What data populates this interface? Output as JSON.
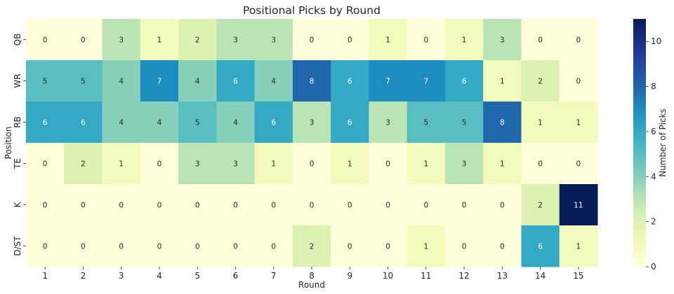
{
  "chart_data": {
    "type": "heatmap",
    "title": "Positional Picks by Round",
    "xlabel": "Round",
    "ylabel": "Position",
    "colorbar_label": "Number of Picks",
    "colorbar_ticks": [
      0,
      2,
      4,
      6,
      8,
      10
    ],
    "vmin": 0,
    "vmax": 11,
    "colormap": "YlGnBu",
    "x": [
      "1",
      "2",
      "3",
      "4",
      "5",
      "6",
      "7",
      "8",
      "9",
      "10",
      "11",
      "12",
      "13",
      "14",
      "15"
    ],
    "y": [
      "QB",
      "WR",
      "RB",
      "TE",
      "K",
      "D/ST"
    ],
    "values": [
      [
        0,
        0,
        3,
        1,
        2,
        3,
        3,
        0,
        0,
        1,
        0,
        1,
        3,
        0,
        0
      ],
      [
        5,
        5,
        4,
        7,
        4,
        6,
        4,
        8,
        6,
        7,
        7,
        6,
        1,
        2,
        0
      ],
      [
        6,
        6,
        4,
        4,
        5,
        4,
        6,
        3,
        6,
        3,
        5,
        5,
        8,
        1,
        1
      ],
      [
        0,
        2,
        1,
        0,
        3,
        3,
        1,
        0,
        1,
        0,
        1,
        3,
        1,
        0,
        0
      ],
      [
        0,
        0,
        0,
        0,
        0,
        0,
        0,
        0,
        0,
        0,
        0,
        0,
        0,
        2,
        11
      ],
      [
        0,
        0,
        0,
        0,
        0,
        0,
        0,
        2,
        0,
        0,
        1,
        0,
        0,
        6,
        1
      ]
    ]
  }
}
